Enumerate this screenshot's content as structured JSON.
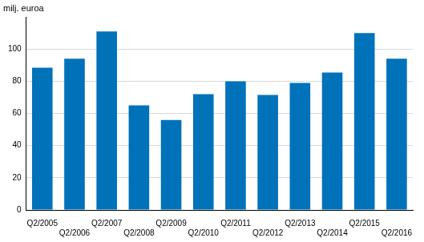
{
  "chart_data": {
    "type": "bar",
    "y_label": "milj. euroa",
    "categories": [
      "Q2/2005",
      "Q2/2006",
      "Q2/2007",
      "Q2/2008",
      "Q2/2009",
      "Q2/2010",
      "Q2/2011",
      "Q2/2012",
      "Q2/2013",
      "Q2/2014",
      "Q2/2015",
      "Q2/2016"
    ],
    "values": [
      88.5,
      94,
      111,
      65,
      56,
      72,
      80,
      71.5,
      79,
      85.5,
      110,
      94
    ],
    "color": "#0072b9",
    "ylim": [
      0,
      120
    ],
    "yticks": [
      0,
      20,
      40,
      60,
      80,
      100
    ],
    "grid": true
  }
}
